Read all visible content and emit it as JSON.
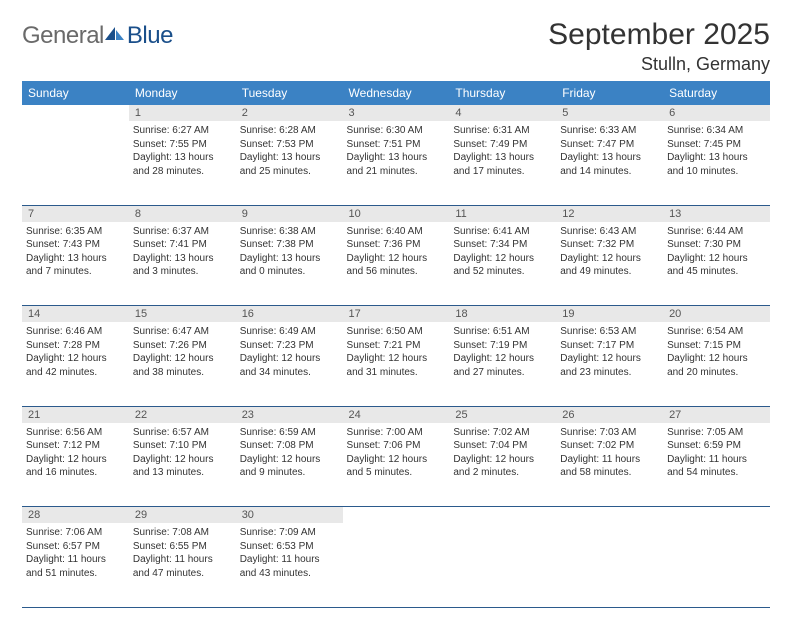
{
  "logo": {
    "text1": "General",
    "text2": "Blue"
  },
  "title": "September 2025",
  "location": "Stulln, Germany",
  "headers": [
    "Sunday",
    "Monday",
    "Tuesday",
    "Wednesday",
    "Thursday",
    "Friday",
    "Saturday"
  ],
  "colors": {
    "header_bg": "#3b82c4",
    "header_fg": "#ffffff",
    "daynum_bg": "#e8e8e8",
    "rule": "#2b5a8c",
    "logo_gray": "#6a6a6a",
    "logo_blue": "#1a4f8a"
  },
  "weeks": [
    [
      null,
      {
        "n": "1",
        "sr": "6:27 AM",
        "ss": "7:55 PM",
        "dl": "13 hours and 28 minutes."
      },
      {
        "n": "2",
        "sr": "6:28 AM",
        "ss": "7:53 PM",
        "dl": "13 hours and 25 minutes."
      },
      {
        "n": "3",
        "sr": "6:30 AM",
        "ss": "7:51 PM",
        "dl": "13 hours and 21 minutes."
      },
      {
        "n": "4",
        "sr": "6:31 AM",
        "ss": "7:49 PM",
        "dl": "13 hours and 17 minutes."
      },
      {
        "n": "5",
        "sr": "6:33 AM",
        "ss": "7:47 PM",
        "dl": "13 hours and 14 minutes."
      },
      {
        "n": "6",
        "sr": "6:34 AM",
        "ss": "7:45 PM",
        "dl": "13 hours and 10 minutes."
      }
    ],
    [
      {
        "n": "7",
        "sr": "6:35 AM",
        "ss": "7:43 PM",
        "dl": "13 hours and 7 minutes."
      },
      {
        "n": "8",
        "sr": "6:37 AM",
        "ss": "7:41 PM",
        "dl": "13 hours and 3 minutes."
      },
      {
        "n": "9",
        "sr": "6:38 AM",
        "ss": "7:38 PM",
        "dl": "13 hours and 0 minutes."
      },
      {
        "n": "10",
        "sr": "6:40 AM",
        "ss": "7:36 PM",
        "dl": "12 hours and 56 minutes."
      },
      {
        "n": "11",
        "sr": "6:41 AM",
        "ss": "7:34 PM",
        "dl": "12 hours and 52 minutes."
      },
      {
        "n": "12",
        "sr": "6:43 AM",
        "ss": "7:32 PM",
        "dl": "12 hours and 49 minutes."
      },
      {
        "n": "13",
        "sr": "6:44 AM",
        "ss": "7:30 PM",
        "dl": "12 hours and 45 minutes."
      }
    ],
    [
      {
        "n": "14",
        "sr": "6:46 AM",
        "ss": "7:28 PM",
        "dl": "12 hours and 42 minutes."
      },
      {
        "n": "15",
        "sr": "6:47 AM",
        "ss": "7:26 PM",
        "dl": "12 hours and 38 minutes."
      },
      {
        "n": "16",
        "sr": "6:49 AM",
        "ss": "7:23 PM",
        "dl": "12 hours and 34 minutes."
      },
      {
        "n": "17",
        "sr": "6:50 AM",
        "ss": "7:21 PM",
        "dl": "12 hours and 31 minutes."
      },
      {
        "n": "18",
        "sr": "6:51 AM",
        "ss": "7:19 PM",
        "dl": "12 hours and 27 minutes."
      },
      {
        "n": "19",
        "sr": "6:53 AM",
        "ss": "7:17 PM",
        "dl": "12 hours and 23 minutes."
      },
      {
        "n": "20",
        "sr": "6:54 AM",
        "ss": "7:15 PM",
        "dl": "12 hours and 20 minutes."
      }
    ],
    [
      {
        "n": "21",
        "sr": "6:56 AM",
        "ss": "7:12 PM",
        "dl": "12 hours and 16 minutes."
      },
      {
        "n": "22",
        "sr": "6:57 AM",
        "ss": "7:10 PM",
        "dl": "12 hours and 13 minutes."
      },
      {
        "n": "23",
        "sr": "6:59 AM",
        "ss": "7:08 PM",
        "dl": "12 hours and 9 minutes."
      },
      {
        "n": "24",
        "sr": "7:00 AM",
        "ss": "7:06 PM",
        "dl": "12 hours and 5 minutes."
      },
      {
        "n": "25",
        "sr": "7:02 AM",
        "ss": "7:04 PM",
        "dl": "12 hours and 2 minutes."
      },
      {
        "n": "26",
        "sr": "7:03 AM",
        "ss": "7:02 PM",
        "dl": "11 hours and 58 minutes."
      },
      {
        "n": "27",
        "sr": "7:05 AM",
        "ss": "6:59 PM",
        "dl": "11 hours and 54 minutes."
      }
    ],
    [
      {
        "n": "28",
        "sr": "7:06 AM",
        "ss": "6:57 PM",
        "dl": "11 hours and 51 minutes."
      },
      {
        "n": "29",
        "sr": "7:08 AM",
        "ss": "6:55 PM",
        "dl": "11 hours and 47 minutes."
      },
      {
        "n": "30",
        "sr": "7:09 AM",
        "ss": "6:53 PM",
        "dl": "11 hours and 43 minutes."
      },
      null,
      null,
      null,
      null
    ]
  ],
  "labels": {
    "sunrise": "Sunrise:",
    "sunset": "Sunset:",
    "daylight": "Daylight:"
  }
}
